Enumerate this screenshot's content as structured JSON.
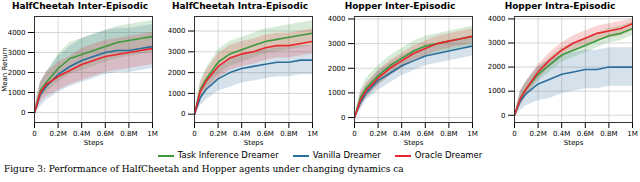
{
  "caption": "Figure 3: Performance of HalfCheetah and Hopper agents under changing dynamics ca",
  "chart_data": [
    {
      "type": "line",
      "title": "HalfCheetah Inter-Episodic",
      "xlabel": "Steps",
      "ylabel": "Mean Return",
      "grid": true,
      "x": [
        0,
        50000,
        100000,
        200000,
        300000,
        400000,
        500000,
        600000,
        700000,
        800000,
        900000,
        1000000
      ],
      "xlim": [
        0,
        1000000
      ],
      "xticks": [
        0,
        {
          "value": 200000,
          "label": "0.2M"
        },
        {
          "value": 400000,
          "label": "0.4M"
        },
        {
          "value": 600000,
          "label": "0.6M"
        },
        {
          "value": 800000,
          "label": "0.8M"
        },
        {
          "value": 1000000,
          "label": "1M"
        }
      ],
      "ylim": [
        -500,
        4800
      ],
      "yticks": [
        0,
        1000,
        2000,
        3000,
        4000
      ],
      "series": [
        {
          "name": "Task Inference Dreamer",
          "color": "#3c9a3c",
          "values": [
            0,
            1100,
            1500,
            2200,
            2700,
            2900,
            3100,
            3300,
            3500,
            3600,
            3700,
            3800
          ],
          "lower": [
            0,
            700,
            1000,
            1500,
            1900,
            2100,
            2300,
            2500,
            2700,
            2800,
            2900,
            3000
          ],
          "upper": [
            0,
            1500,
            2000,
            2900,
            3500,
            3700,
            3900,
            4100,
            4300,
            4400,
            4500,
            4600
          ]
        },
        {
          "name": "Vanilla Dreamer",
          "color": "#2c6e9b",
          "values": [
            0,
            900,
            1300,
            1900,
            2300,
            2600,
            2800,
            3000,
            3100,
            3100,
            3200,
            3300
          ],
          "lower": [
            0,
            300,
            600,
            1000,
            1300,
            1500,
            1700,
            1900,
            2000,
            2000,
            2100,
            2200
          ],
          "upper": [
            0,
            1500,
            2000,
            2800,
            3300,
            3700,
            3900,
            4100,
            4200,
            4200,
            4300,
            4400
          ]
        },
        {
          "name": "Oracle Dreamer",
          "color": "#e8262d",
          "values": [
            0,
            1000,
            1400,
            1800,
            2100,
            2400,
            2600,
            2800,
            2900,
            3000,
            3100,
            3200
          ],
          "lower": [
            -300,
            500,
            800,
            1100,
            1400,
            1600,
            1800,
            2000,
            2100,
            2200,
            2300,
            2400
          ],
          "upper": [
            300,
            1500,
            2000,
            2500,
            2800,
            3200,
            3400,
            3600,
            3700,
            3800,
            3900,
            4000
          ]
        }
      ]
    },
    {
      "type": "line",
      "title": "HalfCheetah Intra-Episodic",
      "xlabel": "Steps",
      "grid": true,
      "x": [
        0,
        50000,
        100000,
        200000,
        300000,
        400000,
        500000,
        600000,
        700000,
        800000,
        900000,
        1000000
      ],
      "xlim": [
        0,
        1000000
      ],
      "xticks": [
        0,
        {
          "value": 200000,
          "label": "0.2M"
        },
        {
          "value": 400000,
          "label": "0.4M"
        },
        {
          "value": 600000,
          "label": "0.6M"
        },
        {
          "value": 800000,
          "label": "0.8M"
        },
        {
          "value": 1000000,
          "label": "1M"
        }
      ],
      "ylim": [
        -400,
        4700
      ],
      "yticks": [
        0,
        1000,
        2000,
        3000,
        4000
      ],
      "series": [
        {
          "name": "Task Inference Dreamer",
          "color": "#3c9a3c",
          "values": [
            0,
            1200,
            1700,
            2500,
            2900,
            3100,
            3300,
            3500,
            3600,
            3700,
            3800,
            3900
          ],
          "lower": [
            0,
            800,
            1200,
            1900,
            2300,
            2500,
            2700,
            2900,
            3000,
            3100,
            3200,
            3300
          ],
          "upper": [
            0,
            1600,
            2200,
            3100,
            3500,
            3700,
            3900,
            4100,
            4200,
            4300,
            4400,
            4500
          ]
        },
        {
          "name": "Vanilla Dreamer",
          "color": "#2c6e9b",
          "values": [
            0,
            800,
            1200,
            1700,
            2000,
            2200,
            2300,
            2400,
            2500,
            2500,
            2600,
            2600
          ],
          "lower": [
            0,
            400,
            700,
            1100,
            1300,
            1500,
            1600,
            1700,
            1800,
            1800,
            1900,
            1900
          ],
          "upper": [
            0,
            1200,
            1700,
            2300,
            2700,
            2900,
            3000,
            3100,
            3200,
            3200,
            3300,
            3300
          ]
        },
        {
          "name": "Oracle Dreamer",
          "color": "#e8262d",
          "values": [
            0,
            1100,
            1600,
            2300,
            2700,
            2900,
            3000,
            3200,
            3300,
            3300,
            3400,
            3500
          ],
          "lower": [
            0,
            700,
            1100,
            1700,
            2100,
            2300,
            2400,
            2600,
            2700,
            2700,
            2800,
            2900
          ],
          "upper": [
            0,
            1500,
            2100,
            2900,
            3300,
            3500,
            3600,
            3800,
            3900,
            3900,
            4000,
            4100
          ]
        }
      ]
    },
    {
      "type": "line",
      "title": "Hopper Inter-Episodic",
      "xlabel": "Steps",
      "grid": true,
      "x": [
        0,
        50000,
        100000,
        200000,
        300000,
        400000,
        500000,
        600000,
        700000,
        800000,
        900000,
        1000000
      ],
      "xlim": [
        0,
        1000000
      ],
      "xticks": [
        0,
        {
          "value": 200000,
          "label": "0.2M"
        },
        {
          "value": 400000,
          "label": "0.4M"
        },
        {
          "value": 600000,
          "label": "0.6M"
        },
        {
          "value": 800000,
          "label": "0.8M"
        },
        {
          "value": 1000000,
          "label": "1M"
        }
      ],
      "ylim": [
        -200,
        4100
      ],
      "yticks": [
        0,
        1000,
        2000,
        3000,
        4000
      ],
      "series": [
        {
          "name": "Task Inference Dreamer",
          "color": "#3c9a3c",
          "values": [
            0,
            800,
            1200,
            1700,
            2100,
            2400,
            2700,
            2900,
            3000,
            3100,
            3200,
            3300
          ],
          "lower": [
            0,
            500,
            800,
            1300,
            1700,
            2000,
            2300,
            2500,
            2600,
            2700,
            2800,
            2900
          ],
          "upper": [
            0,
            1100,
            1600,
            2100,
            2500,
            2800,
            3100,
            3300,
            3400,
            3500,
            3600,
            3700
          ]
        },
        {
          "name": "Vanilla Dreamer",
          "color": "#2c6e9b",
          "values": [
            0,
            600,
            1000,
            1500,
            1800,
            2100,
            2300,
            2500,
            2600,
            2700,
            2800,
            2900
          ],
          "lower": [
            0,
            300,
            700,
            1100,
            1400,
            1700,
            1900,
            2100,
            2200,
            2300,
            2400,
            2500
          ],
          "upper": [
            0,
            900,
            1300,
            1900,
            2200,
            2500,
            2700,
            2900,
            3000,
            3100,
            3200,
            3300
          ]
        },
        {
          "name": "Oracle Dreamer",
          "color": "#e8262d",
          "values": [
            0,
            700,
            1100,
            1600,
            2000,
            2300,
            2600,
            2800,
            3000,
            3100,
            3200,
            3300
          ],
          "lower": [
            0,
            400,
            800,
            1300,
            1700,
            2000,
            2300,
            2500,
            2700,
            2800,
            2900,
            3000
          ],
          "upper": [
            0,
            1000,
            1400,
            1900,
            2300,
            2600,
            2900,
            3100,
            3300,
            3400,
            3500,
            3600
          ]
        }
      ]
    },
    {
      "type": "line",
      "title": "Hopper Intra-Episodic",
      "xlabel": "Steps",
      "grid": true,
      "x": [
        0,
        50000,
        100000,
        200000,
        300000,
        400000,
        500000,
        600000,
        700000,
        800000,
        900000,
        1000000
      ],
      "xlim": [
        0,
        1000000
      ],
      "xticks": [
        0,
        {
          "value": 200000,
          "label": "0.2M"
        },
        {
          "value": 400000,
          "label": "0.4M"
        },
        {
          "value": 600000,
          "label": "0.6M"
        },
        {
          "value": 800000,
          "label": "0.8M"
        },
        {
          "value": 1000000,
          "label": "1M"
        }
      ],
      "ylim": [
        -300,
        4100
      ],
      "yticks": [
        0,
        1000,
        2000,
        3000,
        4000
      ],
      "series": [
        {
          "name": "Task Inference Dreamer",
          "color": "#3c9a3c",
          "values": [
            0,
            700,
            1100,
            1700,
            2100,
            2500,
            2700,
            2900,
            3100,
            3300,
            3400,
            3600
          ],
          "lower": [
            0,
            400,
            800,
            1400,
            1800,
            2200,
            2400,
            2600,
            2800,
            3000,
            3100,
            3300
          ],
          "upper": [
            0,
            1000,
            1400,
            2000,
            2400,
            2800,
            3000,
            3200,
            3400,
            3600,
            3700,
            3900
          ]
        },
        {
          "name": "Vanilla Dreamer",
          "color": "#2c6e9b",
          "values": [
            0,
            600,
            900,
            1300,
            1500,
            1700,
            1800,
            1900,
            1900,
            2000,
            2000,
            2000
          ],
          "lower": [
            0,
            200,
            400,
            600,
            700,
            900,
            1000,
            1100,
            1100,
            1200,
            1200,
            1200
          ],
          "upper": [
            0,
            1000,
            1400,
            2000,
            2300,
            2500,
            2600,
            2700,
            2700,
            2800,
            2800,
            2800
          ]
        },
        {
          "name": "Oracle Dreamer",
          "color": "#e8262d",
          "values": [
            0,
            700,
            1100,
            1800,
            2300,
            2700,
            3000,
            3200,
            3400,
            3500,
            3600,
            3800
          ],
          "lower": [
            0,
            400,
            800,
            1500,
            2000,
            2400,
            2700,
            2900,
            3100,
            3200,
            3300,
            3500
          ],
          "upper": [
            0,
            1000,
            1400,
            2100,
            2600,
            3000,
            3300,
            3500,
            3700,
            3800,
            3900,
            4000
          ]
        }
      ]
    }
  ]
}
